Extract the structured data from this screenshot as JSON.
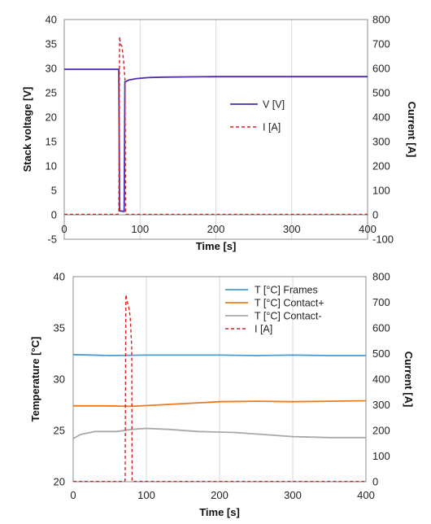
{
  "chart_data": [
    {
      "type": "line",
      "xlabel": "Time [s]",
      "ylabel": "Stack voltage [V]",
      "y2label": "Current [A]",
      "xlim": [
        0,
        400
      ],
      "ylim": [
        -5,
        40
      ],
      "y2lim": [
        -100,
        800
      ],
      "xticks": [
        0,
        100,
        200,
        300,
        400
      ],
      "yticks": [
        -5,
        0,
        5,
        10,
        15,
        20,
        25,
        30,
        35,
        40
      ],
      "y2ticks": [
        -100,
        0,
        100,
        200,
        300,
        400,
        500,
        600,
        700,
        800
      ],
      "grid": "vertical",
      "legend_position": "center-right",
      "series": [
        {
          "name": "V [V]",
          "axis": "left",
          "color": "#4b2cb0",
          "dash": false,
          "points": [
            [
              0,
              29.8
            ],
            [
              72,
              29.8
            ],
            [
              73,
              0.8
            ],
            [
              79,
              0.7
            ],
            [
              80,
              27.2
            ],
            [
              85,
              27.6
            ],
            [
              95,
              27.9
            ],
            [
              110,
              28.1
            ],
            [
              130,
              28.2
            ],
            [
              160,
              28.25
            ],
            [
              200,
              28.3
            ],
            [
              300,
              28.3
            ],
            [
              400,
              28.3
            ]
          ]
        },
        {
          "name": "I [A]",
          "axis": "right",
          "color": "#d62020",
          "dash": true,
          "points": [
            [
              0,
              2
            ],
            [
              70,
              2
            ],
            [
              72,
              5
            ],
            [
              73,
              730
            ],
            [
              74,
              700
            ],
            [
              76,
              690
            ],
            [
              78,
              640
            ],
            [
              80,
              560
            ],
            [
              81,
              2
            ],
            [
              400,
              2
            ]
          ]
        }
      ]
    },
    {
      "type": "line",
      "xlabel": "Time [s]",
      "ylabel": "Temperature [°C]",
      "y2label": "Current [A]",
      "xlim": [
        0,
        400
      ],
      "ylim": [
        20,
        40
      ],
      "y2lim": [
        0,
        800
      ],
      "xticks": [
        0,
        100,
        200,
        300,
        400
      ],
      "yticks": [
        20,
        25,
        30,
        35,
        40
      ],
      "y2ticks": [
        0,
        100,
        200,
        300,
        400,
        500,
        600,
        700,
        800
      ],
      "grid": "vertical",
      "legend_position": "top-right",
      "series": [
        {
          "name": "T [°C] Frames",
          "axis": "left",
          "color": "#4e9ad0",
          "dash": false,
          "points": [
            [
              0,
              32.4
            ],
            [
              50,
              32.3
            ],
            [
              100,
              32.35
            ],
            [
              150,
              32.35
            ],
            [
              200,
              32.35
            ],
            [
              250,
              32.3
            ],
            [
              300,
              32.35
            ],
            [
              350,
              32.3
            ],
            [
              400,
              32.3
            ]
          ]
        },
        {
          "name": "T [°C] Contact+",
          "axis": "left",
          "color": "#ec7a1c",
          "dash": false,
          "points": [
            [
              0,
              27.4
            ],
            [
              40,
              27.4
            ],
            [
              80,
              27.35
            ],
            [
              120,
              27.5
            ],
            [
              160,
              27.65
            ],
            [
              200,
              27.8
            ],
            [
              250,
              27.85
            ],
            [
              300,
              27.8
            ],
            [
              350,
              27.85
            ],
            [
              400,
              27.9
            ]
          ]
        },
        {
          "name": "T [°C] Contact-",
          "axis": "left",
          "color": "#a8a8a8",
          "dash": false,
          "points": [
            [
              0,
              24.2
            ],
            [
              10,
              24.6
            ],
            [
              30,
              24.9
            ],
            [
              60,
              24.9
            ],
            [
              80,
              25.1
            ],
            [
              100,
              25.2
            ],
            [
              130,
              25.1
            ],
            [
              170,
              24.9
            ],
            [
              220,
              24.8
            ],
            [
              260,
              24.6
            ],
            [
              300,
              24.4
            ],
            [
              350,
              24.3
            ],
            [
              400,
              24.3
            ]
          ]
        },
        {
          "name": "I [A]",
          "axis": "right",
          "color": "#d62020",
          "dash": true,
          "points": [
            [
              0,
              1
            ],
            [
              70,
              1
            ],
            [
              71,
              5
            ],
            [
              72,
              730
            ],
            [
              74,
              700
            ],
            [
              76,
              680
            ],
            [
              78,
              640
            ],
            [
              80,
              520
            ],
            [
              80.5,
              1
            ],
            [
              400,
              1
            ]
          ]
        }
      ]
    }
  ]
}
